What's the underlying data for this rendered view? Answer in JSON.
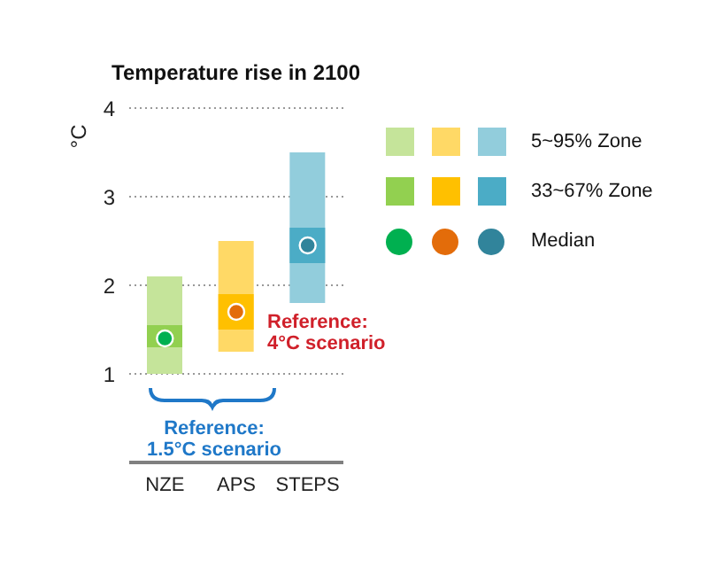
{
  "chart_data": {
    "type": "bar",
    "title": "Temperature rise in 2100",
    "ylabel": "°C",
    "categories": [
      "NZE",
      "APS",
      "STEPS"
    ],
    "series": [
      {
        "name": "5~95% Zone",
        "colors": [
          "#c5e49a",
          "#ffd966",
          "#92cddc"
        ],
        "base": [
          1.0,
          1.25,
          1.8
        ],
        "values": [
          1.1,
          1.25,
          1.7
        ]
      },
      {
        "name": "33~67% Zone",
        "colors": [
          "#92d050",
          "#ffc000",
          "#4bacc6"
        ],
        "base": [
          1.3,
          1.5,
          2.25
        ],
        "values": [
          0.25,
          0.4,
          0.4
        ]
      },
      {
        "name": "Median",
        "type": "scatter",
        "colors": [
          "#00b050",
          "#e36c0a",
          "#31849b"
        ],
        "values": [
          1.4,
          1.7,
          2.45
        ]
      }
    ],
    "ylim": [
      0,
      4
    ],
    "yticks": [
      1,
      2,
      3,
      4
    ],
    "grid": "y",
    "legend": "right",
    "marker": "circle",
    "annotations": [
      "Reference: 4°C scenario",
      "Reference: 1.5°C scenario"
    ]
  }
}
